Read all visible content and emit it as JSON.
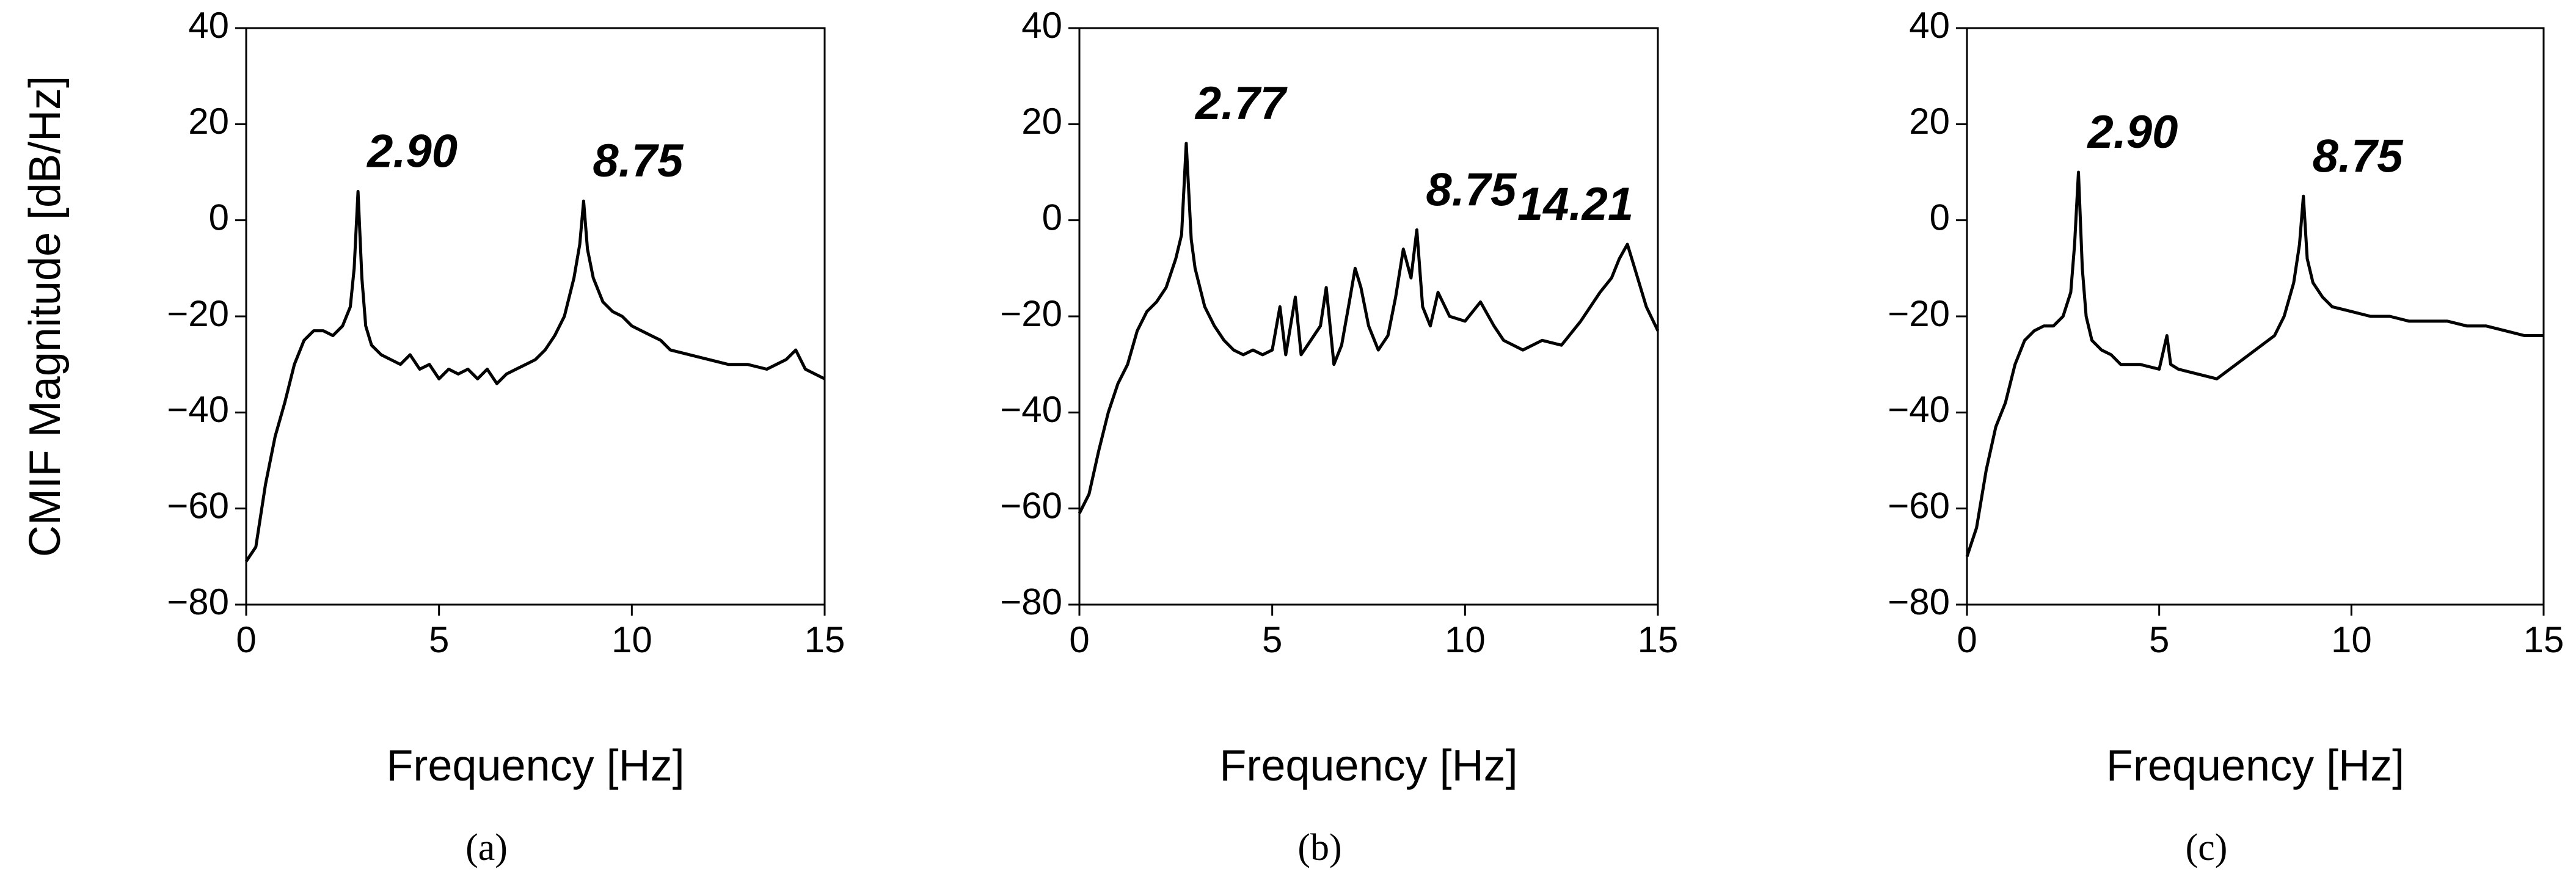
{
  "chart_data": [
    {
      "type": "line",
      "x_label": "Frequency [Hz]",
      "y_label": "CMIF Magnitude [dB/Hz]",
      "caption": "(a)",
      "color": "#000000",
      "xlim": [
        0,
        15
      ],
      "xticks": [
        0,
        5,
        10,
        15
      ],
      "ylim": [
        -80,
        40
      ],
      "yticks": [
        {
          "value": -80,
          "label": "−80"
        },
        {
          "value": -60,
          "label": "−60"
        },
        {
          "value": -40,
          "label": "−40"
        },
        {
          "value": -20,
          "label": "−20"
        },
        0,
        20,
        40
      ],
      "x": [
        0,
        0.25,
        0.5,
        0.75,
        1,
        1.25,
        1.5,
        1.75,
        2,
        2.25,
        2.5,
        2.7,
        2.8,
        2.9,
        3.0,
        3.1,
        3.25,
        3.5,
        3.75,
        4,
        4.25,
        4.5,
        4.75,
        5,
        5.25,
        5.5,
        5.75,
        6,
        6.25,
        6.5,
        6.75,
        7,
        7.25,
        7.5,
        7.75,
        8,
        8.25,
        8.5,
        8.65,
        8.75,
        8.85,
        9,
        9.25,
        9.5,
        9.75,
        10,
        10.25,
        10.5,
        10.75,
        11,
        11.5,
        12,
        12.5,
        13,
        13.5,
        14,
        14.25,
        14.5,
        15
      ],
      "values": [
        -71,
        -68,
        -55,
        -45,
        -38,
        -30,
        -25,
        -23,
        -23,
        -24,
        -22,
        -18,
        -10,
        6,
        -12,
        -22,
        -26,
        -28,
        -29,
        -30,
        -28,
        -31,
        -30,
        -33,
        -31,
        -32,
        -31,
        -33,
        -31,
        -34,
        -32,
        -31,
        -30,
        -29,
        -27,
        -24,
        -20,
        -12,
        -5,
        4,
        -6,
        -12,
        -17,
        -19,
        -20,
        -22,
        -23,
        -24,
        -25,
        -27,
        -28,
        -29,
        -30,
        -30,
        -31,
        -29,
        -27,
        -31,
        -33
      ],
      "annotations": [
        {
          "text": "2.90",
          "x": 2.9
        },
        {
          "text": "8.75",
          "x": 8.75
        }
      ]
    },
    {
      "type": "line",
      "x_label": "Frequency [Hz]",
      "caption": "(b)",
      "color": "#000000",
      "xlim": [
        0,
        15
      ],
      "xticks": [
        0,
        5,
        10,
        15
      ],
      "ylim": [
        -80,
        40
      ],
      "yticks": [
        {
          "value": -80,
          "label": "−80"
        },
        {
          "value": -60,
          "label": "−60"
        },
        {
          "value": -40,
          "label": "−40"
        },
        {
          "value": -20,
          "label": "−20"
        },
        0,
        20,
        40
      ],
      "x": [
        0,
        0.25,
        0.5,
        0.75,
        1,
        1.25,
        1.5,
        1.75,
        2,
        2.25,
        2.5,
        2.65,
        2.77,
        2.9,
        3.0,
        3.25,
        3.5,
        3.75,
        4,
        4.25,
        4.5,
        4.75,
        5,
        5.2,
        5.35,
        5.6,
        5.75,
        6,
        6.25,
        6.4,
        6.6,
        6.8,
        7.0,
        7.15,
        7.3,
        7.5,
        7.75,
        8.0,
        8.2,
        8.4,
        8.6,
        8.75,
        8.9,
        9.1,
        9.3,
        9.6,
        10,
        10.4,
        10.75,
        11,
        11.5,
        12,
        12.5,
        13,
        13.5,
        13.8,
        14.0,
        14.21,
        14.4,
        14.7,
        15
      ],
      "values": [
        -61,
        -57,
        -48,
        -40,
        -34,
        -30,
        -23,
        -19,
        -17,
        -14,
        -8,
        -3,
        16,
        -4,
        -10,
        -18,
        -22,
        -25,
        -27,
        -28,
        -27,
        -28,
        -27,
        -18,
        -28,
        -16,
        -28,
        -25,
        -22,
        -14,
        -30,
        -26,
        -17,
        -10,
        -14,
        -22,
        -27,
        -24,
        -16,
        -6,
        -12,
        -2,
        -18,
        -22,
        -15,
        -20,
        -21,
        -17,
        -22,
        -25,
        -27,
        -25,
        -26,
        -21,
        -15,
        -12,
        -8,
        -5,
        -10,
        -18,
        -23
      ],
      "annotations": [
        {
          "text": "2.77",
          "x": 2.77
        },
        {
          "text": "8.75",
          "x": 8.75
        },
        {
          "text": "14.21",
          "x": 14.21
        }
      ]
    },
    {
      "type": "line",
      "x_label": "Frequency [Hz]",
      "caption": "(c)",
      "color": "#000000",
      "xlim": [
        0,
        15
      ],
      "xticks": [
        0,
        5,
        10,
        15
      ],
      "ylim": [
        -80,
        40
      ],
      "yticks": [
        {
          "value": -80,
          "label": "−80"
        },
        {
          "value": -60,
          "label": "−60"
        },
        {
          "value": -40,
          "label": "−40"
        },
        {
          "value": -20,
          "label": "−20"
        },
        0,
        20,
        40
      ],
      "x": [
        0,
        0.25,
        0.5,
        0.75,
        1,
        1.25,
        1.5,
        1.75,
        2,
        2.25,
        2.5,
        2.7,
        2.8,
        2.9,
        3.0,
        3.1,
        3.25,
        3.5,
        3.75,
        4,
        4.5,
        5,
        5.2,
        5.3,
        5.5,
        6,
        6.5,
        7,
        7.5,
        8,
        8.25,
        8.5,
        8.65,
        8.75,
        8.85,
        9,
        9.25,
        9.5,
        10,
        10.5,
        11,
        11.5,
        12,
        12.5,
        13,
        13.5,
        14,
        14.5,
        15
      ],
      "values": [
        -70,
        -64,
        -52,
        -43,
        -38,
        -30,
        -25,
        -23,
        -22,
        -22,
        -20,
        -15,
        -5,
        10,
        -10,
        -20,
        -25,
        -27,
        -28,
        -30,
        -30,
        -31,
        -24,
        -30,
        -31,
        -32,
        -33,
        -30,
        -27,
        -24,
        -20,
        -13,
        -5,
        5,
        -8,
        -13,
        -16,
        -18,
        -19,
        -20,
        -20,
        -21,
        -21,
        -21,
        -22,
        -22,
        -23,
        -24,
        -24
      ],
      "annotations": [
        {
          "text": "2.90",
          "x": 2.9
        },
        {
          "text": "8.75",
          "x": 8.75
        }
      ]
    }
  ]
}
